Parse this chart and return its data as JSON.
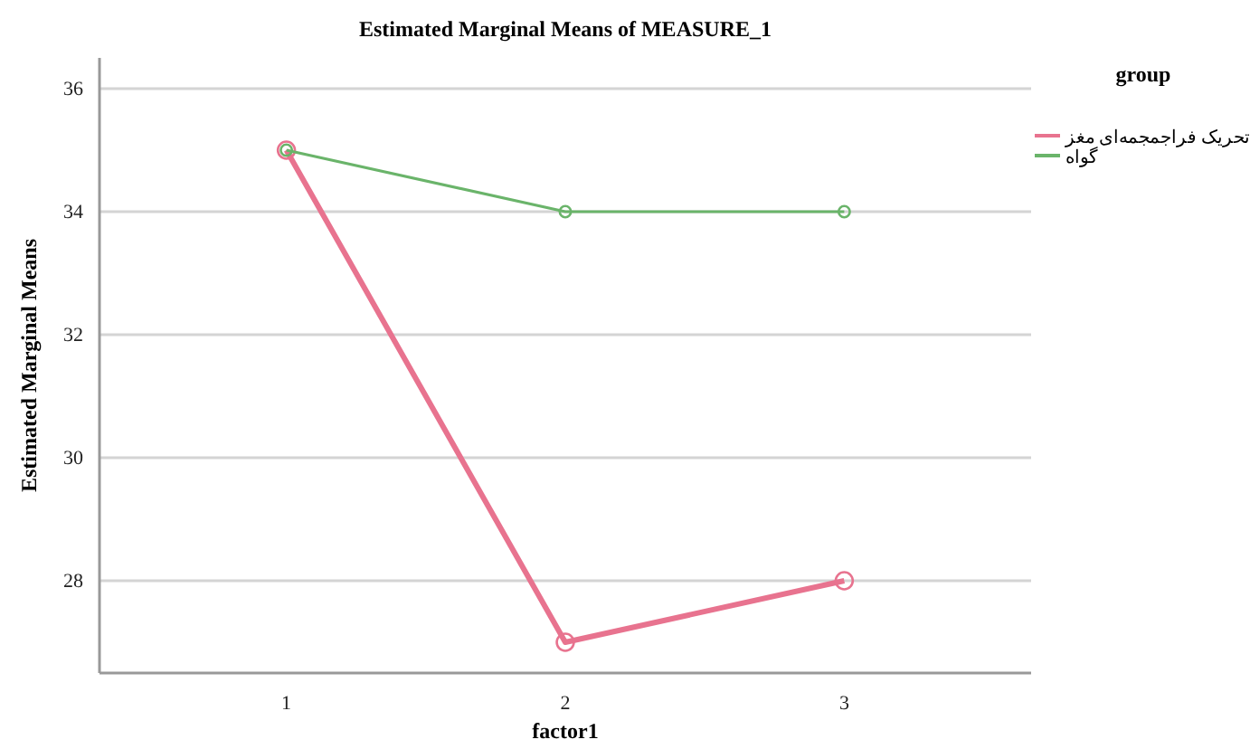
{
  "chart_data": {
    "type": "line",
    "title": "Estimated Marginal Means of MEASURE_1",
    "xlabel": "factor1",
    "ylabel": "Estimated Marginal Means",
    "legend_title": "group",
    "categories": [
      "1",
      "2",
      "3"
    ],
    "series": [
      {
        "name": "تحریک فراجمجمه‌ای مغز",
        "color": "#e8738f",
        "values": [
          35,
          27,
          28
        ]
      },
      {
        "name": "گواه",
        "color": "#6ab46a",
        "values": [
          35,
          34,
          34
        ]
      }
    ],
    "ylim": [
      26.5,
      36.5
    ],
    "yticks": [
      28,
      30,
      32,
      34,
      36
    ],
    "grid": "y",
    "legend": "top right",
    "marker": "circle",
    "line_style": "solid"
  }
}
